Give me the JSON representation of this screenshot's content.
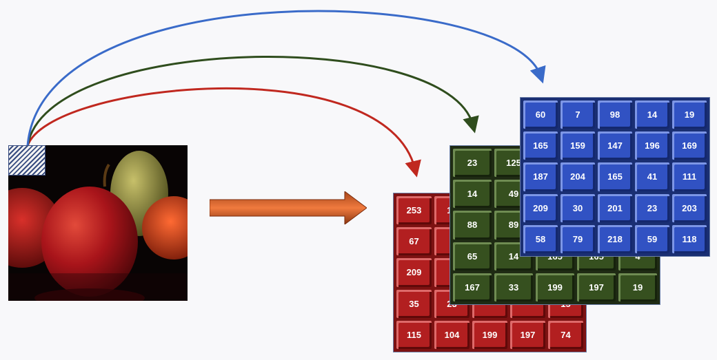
{
  "colors": {
    "red_channel": "#c0281f",
    "green_channel": "#2f4d1d",
    "blue_channel": "#3a6bc9",
    "flow_arrow": "#d8602a",
    "background": "#f8f8fa"
  },
  "icons": {
    "image": "apple-photo",
    "selected_pixel": "hatched-pixel-marker",
    "flow": "right-arrow"
  },
  "red_matrix": [
    [
      "253",
      "14",
      "",
      "",
      ""
    ],
    [
      "67",
      "1",
      "",
      "",
      ""
    ],
    [
      "209",
      "1",
      "",
      "",
      ""
    ],
    [
      "35",
      "23",
      "",
      "",
      "15"
    ],
    [
      "115",
      "104",
      "199",
      "197",
      "74"
    ]
  ],
  "green_matrix": [
    [
      "23",
      "125",
      "",
      "",
      ""
    ],
    [
      "14",
      "49",
      "",
      "",
      ""
    ],
    [
      "88",
      "89",
      "",
      "",
      ""
    ],
    [
      "65",
      "14",
      "165",
      "165",
      "4"
    ],
    [
      "167",
      "33",
      "199",
      "197",
      "19"
    ]
  ],
  "blue_matrix": [
    [
      "60",
      "7",
      "98",
      "14",
      "19"
    ],
    [
      "165",
      "159",
      "147",
      "196",
      "169"
    ],
    [
      "187",
      "204",
      "165",
      "41",
      "111"
    ],
    [
      "209",
      "30",
      "201",
      "23",
      "203"
    ],
    [
      "58",
      "79",
      "218",
      "59",
      "118"
    ]
  ]
}
